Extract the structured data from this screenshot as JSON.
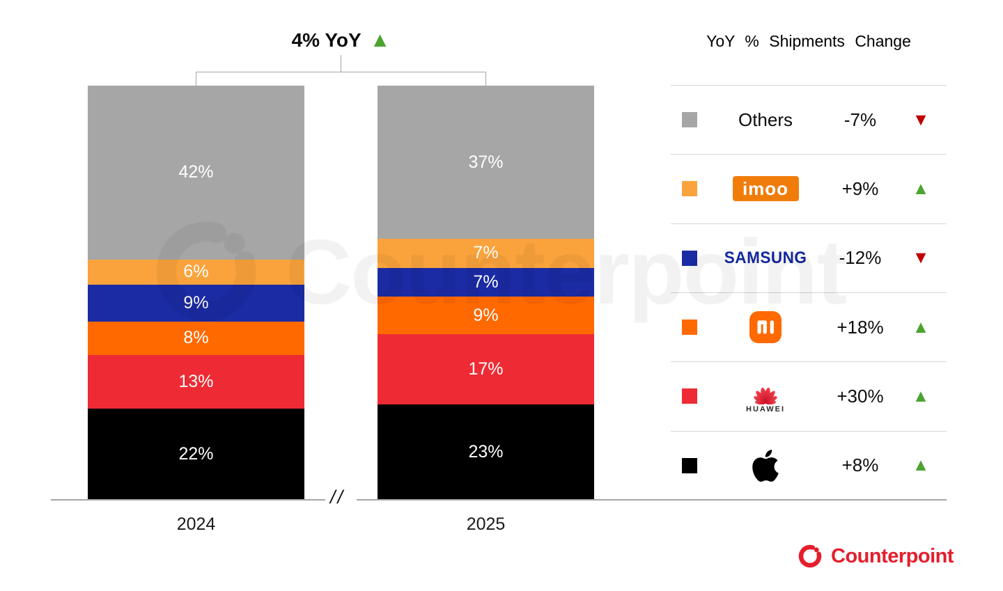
{
  "header": {
    "title": "4% YoY",
    "direction": "up"
  },
  "chart_data": {
    "type": "bar",
    "stacked": true,
    "unit": "%",
    "title": "4% YoY",
    "categories": [
      "2024",
      "2025"
    ],
    "series": [
      {
        "name": "Others",
        "color": "#a6a6a6",
        "values": [
          42,
          37
        ],
        "yoy_change": "-7%",
        "yoy_direction": "down"
      },
      {
        "name": "imoo",
        "color": "#faa33c",
        "values": [
          6,
          7
        ],
        "yoy_change": "+9%",
        "yoy_direction": "up"
      },
      {
        "name": "Samsung",
        "color": "#1b2ba3",
        "values": [
          9,
          7
        ],
        "yoy_change": "-12%",
        "yoy_direction": "down"
      },
      {
        "name": "Xiaomi",
        "color": "#ff6900",
        "values": [
          8,
          9
        ],
        "yoy_change": "+18%",
        "yoy_direction": "up"
      },
      {
        "name": "Huawei",
        "color": "#ee2b34",
        "values": [
          13,
          17
        ],
        "yoy_change": "+30%",
        "yoy_direction": "up"
      },
      {
        "name": "Apple",
        "color": "#000000",
        "values": [
          22,
          23
        ],
        "yoy_change": "+8%",
        "yoy_direction": "up"
      }
    ],
    "segment_order_top_to_bottom": [
      "Others",
      "imoo",
      "Samsung",
      "Xiaomi",
      "Huawei",
      "Apple"
    ],
    "legend_title": "YoY % Shipments Change",
    "legend_position": "right",
    "axis_break_mark": "//",
    "grid": false
  },
  "bars": [
    {
      "year": "2024",
      "labels": [
        "42%",
        "6%",
        "9%",
        "8%",
        "13%",
        "22%"
      ]
    },
    {
      "year": "2025",
      "labels": [
        "37%",
        "7%",
        "7%",
        "9%",
        "17%",
        "23%"
      ]
    }
  ],
  "legend": {
    "title": "YoY % Shipments Change",
    "rows": [
      {
        "brand": "Others",
        "label": "Others",
        "change": "-7%",
        "direction": "down"
      },
      {
        "brand": "imoo",
        "logo_text": "imoo",
        "change": "+9%",
        "direction": "up"
      },
      {
        "brand": "Samsung",
        "logo_text": "SAMSUNG",
        "change": "-12%",
        "direction": "down"
      },
      {
        "brand": "Xiaomi",
        "change": "+18%",
        "direction": "up"
      },
      {
        "brand": "Huawei",
        "logo_text": "HUAWEI",
        "change": "+30%",
        "direction": "up"
      },
      {
        "brand": "Apple",
        "change": "+8%",
        "direction": "up"
      }
    ]
  },
  "watermark": {
    "text": "Counterpoint"
  },
  "footer": {
    "brand": "Counterpoint"
  },
  "colors": {
    "up": "#4ca32f",
    "down": "#c00000",
    "axis": "#a6a6a6",
    "separator": "#d7d7d7",
    "counterpoint_red": "#e41e2d",
    "samsung_blue": "#1428a0",
    "imoo_badge_orange": "#f07c0a",
    "xiaomi_orange": "#ff6900"
  }
}
